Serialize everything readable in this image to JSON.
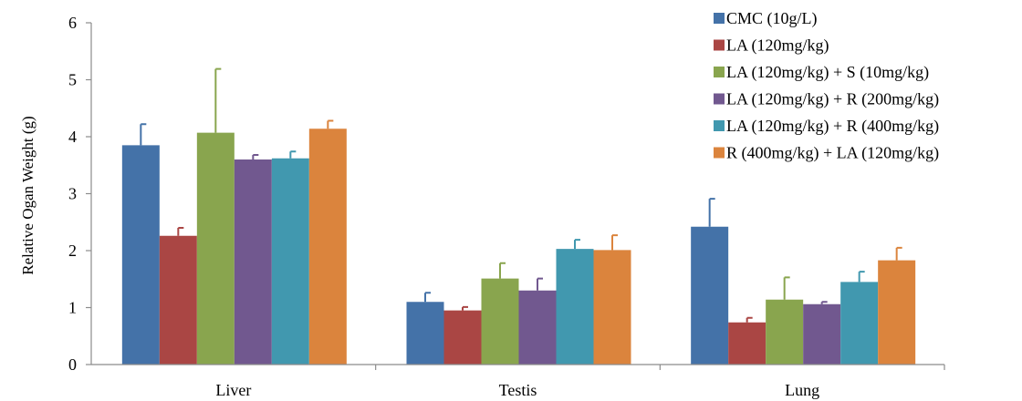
{
  "chart_data": {
    "type": "bar",
    "title": "",
    "xlabel": "",
    "ylabel": "Relative Ogan Weight (g)",
    "ylim": [
      0,
      6
    ],
    "yticks": [
      0,
      1,
      2,
      3,
      4,
      5,
      6
    ],
    "grid": false,
    "legend_position": "top-right",
    "categories": [
      "Liver",
      "Testis",
      "Lung"
    ],
    "series": [
      {
        "name": "CMC (10g/L)",
        "color": "#4472A8",
        "values": [
          3.85,
          1.1,
          2.42
        ],
        "errors": [
          0.37,
          0.16,
          0.49
        ]
      },
      {
        "name": "LA (120mg/kg)",
        "color": "#AA4644",
        "values": [
          2.26,
          0.95,
          0.74
        ],
        "errors": [
          0.14,
          0.06,
          0.08
        ]
      },
      {
        "name": "LA (120mg/kg) + S (10mg/kg)",
        "color": "#89A54E",
        "values": [
          4.07,
          1.51,
          1.14
        ],
        "errors": [
          1.12,
          0.27,
          0.39
        ]
      },
      {
        "name": "LA (120mg/kg) + R (200mg/kg)",
        "color": "#71588F",
        "values": [
          3.6,
          1.3,
          1.06
        ],
        "errors": [
          0.08,
          0.21,
          0.04
        ]
      },
      {
        "name": "LA (120mg/kg) + R (400mg/kg)",
        "color": "#4198AF",
        "values": [
          3.62,
          2.03,
          1.45
        ],
        "errors": [
          0.12,
          0.16,
          0.18
        ]
      },
      {
        "name": "R (400mg/kg) + LA (120mg/kg)",
        "color": "#DB843D",
        "values": [
          4.14,
          2.01,
          1.83
        ],
        "errors": [
          0.14,
          0.26,
          0.22
        ]
      }
    ]
  }
}
